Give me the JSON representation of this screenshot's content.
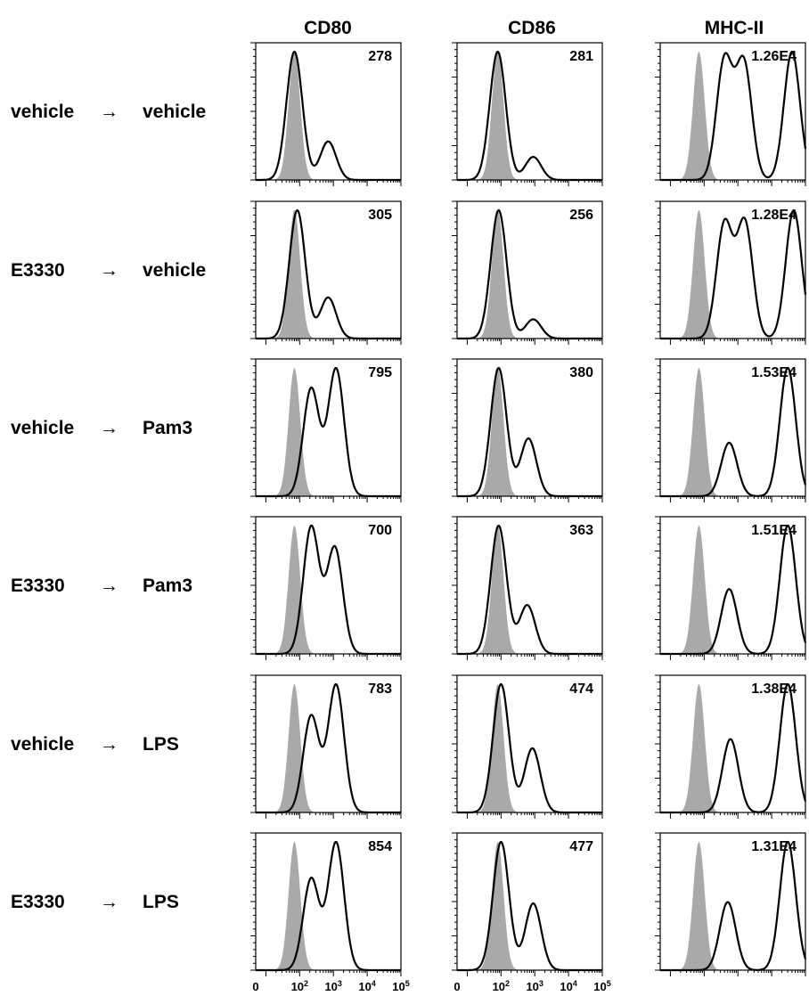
{
  "chart_data": {
    "type": "histogram-grid",
    "title": "",
    "columns": [
      "CD80",
      "CD86",
      "MHC-II"
    ],
    "rows": [
      {
        "label": "vehicle",
        "arrow": "→",
        "treatment": "vehicle"
      },
      {
        "label": "E3330",
        "arrow": "→",
        "treatment": "vehicle"
      },
      {
        "label": "vehicle",
        "arrow": "→",
        "treatment": "Pam3"
      },
      {
        "label": "E3330",
        "arrow": "→",
        "treatment": "Pam3"
      },
      {
        "label": "vehicle",
        "arrow": "→",
        "treatment": "LPS"
      },
      {
        "label": "E3330",
        "arrow": "→",
        "treatment": "LPS"
      }
    ],
    "mfi": [
      [
        "278",
        "281",
        "1.26E4"
      ],
      [
        "305",
        "256",
        "1.28E4"
      ],
      [
        "795",
        "380",
        "1.53E4"
      ],
      [
        "700",
        "363",
        "1.51E4"
      ],
      [
        "783",
        "474",
        "1.38E4"
      ],
      [
        "854",
        "477",
        "1.31E4"
      ]
    ],
    "x_axis": {
      "scale": "biexponential-log",
      "range": [
        0,
        100000
      ],
      "ticks": [
        {
          "value": 0,
          "base": "0",
          "exp": ""
        },
        {
          "value": 100,
          "base": "10",
          "exp": "2"
        },
        {
          "value": 1000,
          "base": "10",
          "exp": "3"
        },
        {
          "value": 10000,
          "base": "10",
          "exp": "4"
        },
        {
          "value": 100000,
          "base": "10",
          "exp": "5"
        }
      ]
    },
    "colors": {
      "isotype": "#a9a9a9",
      "stain": "#000000"
    },
    "isotype_peak": {
      "CD80": 70,
      "CD86": 80,
      "MHC-II": 70
    },
    "profiles": [
      [
        [
          [
            70,
            1.0
          ],
          [
            700,
            0.3
          ]
        ],
        [
          [
            80,
            1.0
          ],
          [
            900,
            0.18
          ]
        ],
        [
          [
            400,
            0.82
          ],
          [
            1500,
            0.8
          ],
          [
            40000,
            0.88
          ]
        ]
      ],
      [
        [
          [
            85,
            1.0
          ],
          [
            700,
            0.32
          ]
        ],
        [
          [
            85,
            1.0
          ],
          [
            900,
            0.15
          ]
        ],
        [
          [
            400,
            0.83
          ],
          [
            1600,
            0.84
          ],
          [
            45000,
            0.93
          ]
        ]
      ],
      [
        [
          [
            220,
            0.82
          ],
          [
            1200,
            0.97
          ]
        ],
        [
          [
            85,
            1.0
          ],
          [
            650,
            0.45
          ]
        ],
        [
          [
            550,
            0.4
          ],
          [
            30000,
            0.96
          ]
        ]
      ],
      [
        [
          [
            220,
            0.98
          ],
          [
            1100,
            0.82
          ]
        ],
        [
          [
            85,
            1.0
          ],
          [
            600,
            0.38
          ]
        ],
        [
          [
            550,
            0.5
          ],
          [
            30000,
            0.99
          ]
        ]
      ],
      [
        [
          [
            220,
            0.75
          ],
          [
            1200,
            0.99
          ]
        ],
        [
          [
            100,
            1.0
          ],
          [
            850,
            0.5
          ]
        ],
        [
          [
            600,
            0.56
          ],
          [
            30000,
            0.98
          ]
        ]
      ],
      [
        [
          [
            220,
            0.71
          ],
          [
            1200,
            0.99
          ]
        ],
        [
          [
            100,
            1.0
          ],
          [
            900,
            0.52
          ]
        ],
        [
          [
            500,
            0.52
          ],
          [
            30000,
            0.98
          ]
        ]
      ]
    ]
  }
}
